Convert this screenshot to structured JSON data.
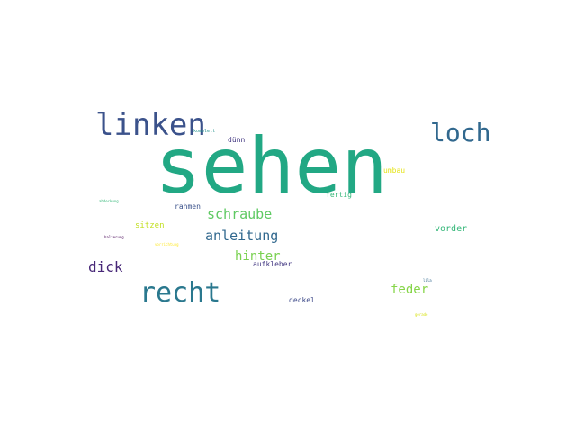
{
  "word_cloud": {
    "words": [
      {
        "text": "sehen",
        "color": "#22A884"
      },
      {
        "text": "linken",
        "color": "#3B528B"
      },
      {
        "text": "loch",
        "color": "#31688E"
      },
      {
        "text": "recht",
        "color": "#2A788E"
      },
      {
        "text": "schraube",
        "color": "#5EC962"
      },
      {
        "text": "anleitung",
        "color": "#31688E"
      },
      {
        "text": "hinter",
        "color": "#7AD151"
      },
      {
        "text": "dick",
        "color": "#482878"
      },
      {
        "text": "feder",
        "color": "#86D549"
      },
      {
        "text": "vorder",
        "color": "#35B779"
      },
      {
        "text": "aufkleber",
        "color": "#443983"
      },
      {
        "text": "deckel",
        "color": "#3E4A89"
      },
      {
        "text": "rahmen",
        "color": "#3B528B"
      },
      {
        "text": "sitzen",
        "color": "#C2DF23"
      },
      {
        "text": "fertig",
        "color": "#35B779"
      },
      {
        "text": "umbau",
        "color": "#E5E419"
      },
      {
        "text": "dünn",
        "color": "#443983"
      },
      {
        "text": "komplett",
        "color": "#21918C"
      },
      {
        "text": "abdeckung",
        "color": "#35B779"
      },
      {
        "text": "halterung",
        "color": "#440154"
      },
      {
        "text": "vorrichtung",
        "color": "#FDE725"
      },
      {
        "text": "lila",
        "color": "#31688E"
      },
      {
        "text": "gerade",
        "color": "#D8E219"
      }
    ]
  }
}
